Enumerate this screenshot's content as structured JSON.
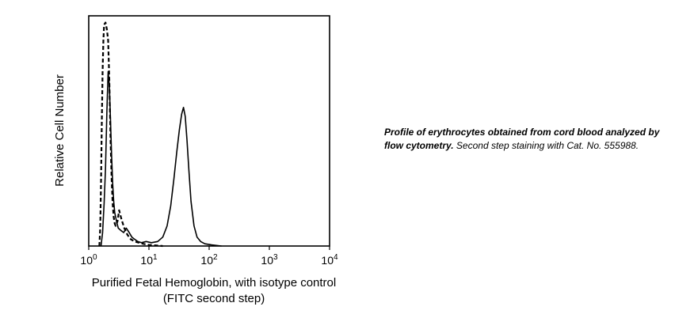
{
  "chart_data": {
    "type": "line",
    "ylabel": "Relative Cell Number",
    "xlabel_line1": "Purified Fetal Hemoglobin, with isotype control",
    "xlabel_line2": "(FITC second step)",
    "xscale": "log",
    "xlim": [
      1,
      10000
    ],
    "ylim": [
      0,
      1.03
    ],
    "grid": false,
    "xticks": [
      {
        "value": 1,
        "base": "10",
        "exp": "0"
      },
      {
        "value": 10,
        "base": "10",
        "exp": "1"
      },
      {
        "value": 100,
        "base": "10",
        "exp": "2"
      },
      {
        "value": 1000,
        "base": "10",
        "exp": "3"
      },
      {
        "value": 10000,
        "base": "10",
        "exp": "4"
      }
    ],
    "series": [
      {
        "style": "solid",
        "x": [
          1.6,
          1.7,
          1.8,
          1.9,
          2.0,
          2.1,
          2.2,
          2.3,
          2.4,
          2.5,
          2.6,
          2.7,
          2.9,
          3.1,
          3.4,
          3.8,
          4.2,
          4.7,
          5.2,
          5.8,
          6.5,
          7.5,
          9.0,
          11.0,
          14.0,
          17.0,
          20.0,
          23.0,
          26.0,
          29.0,
          32.0,
          35.0,
          37.5,
          40.0,
          43.0,
          46.0,
          50.0,
          56.0,
          63.0,
          72.0,
          85.0,
          110,
          160
        ],
        "y": [
          0.0,
          0.06,
          0.19,
          0.35,
          0.6,
          0.78,
          0.72,
          0.56,
          0.4,
          0.28,
          0.2,
          0.15,
          0.11,
          0.08,
          0.07,
          0.06,
          0.08,
          0.06,
          0.04,
          0.03,
          0.02,
          0.015,
          0.02,
          0.015,
          0.02,
          0.04,
          0.09,
          0.18,
          0.3,
          0.42,
          0.52,
          0.59,
          0.62,
          0.58,
          0.47,
          0.34,
          0.2,
          0.09,
          0.04,
          0.02,
          0.01,
          0.005,
          0.0
        ]
      },
      {
        "style": "dashed",
        "x": [
          1.5,
          1.55,
          1.6,
          1.65,
          1.7,
          1.75,
          1.8,
          1.9,
          2.0,
          2.1,
          2.2,
          2.3,
          2.4,
          2.5,
          2.6,
          2.7,
          2.8,
          3.0,
          3.2,
          3.5,
          3.9,
          4.4,
          5.0,
          5.8,
          6.8,
          8.0,
          10.0,
          13.0,
          17.0
        ],
        "y": [
          0.0,
          0.08,
          0.28,
          0.55,
          0.78,
          0.92,
          0.99,
          1.0,
          0.97,
          0.92,
          0.74,
          0.48,
          0.3,
          0.19,
          0.13,
          0.1,
          0.09,
          0.11,
          0.16,
          0.12,
          0.08,
          0.05,
          0.03,
          0.02,
          0.015,
          0.01,
          0.005,
          0.003,
          0.0
        ]
      }
    ]
  },
  "caption": {
    "bold": "Profile of erythrocytes obtained from cord blood analyzed by flow cytometry.",
    "text": " Second step staining with Cat. No. 555988."
  }
}
